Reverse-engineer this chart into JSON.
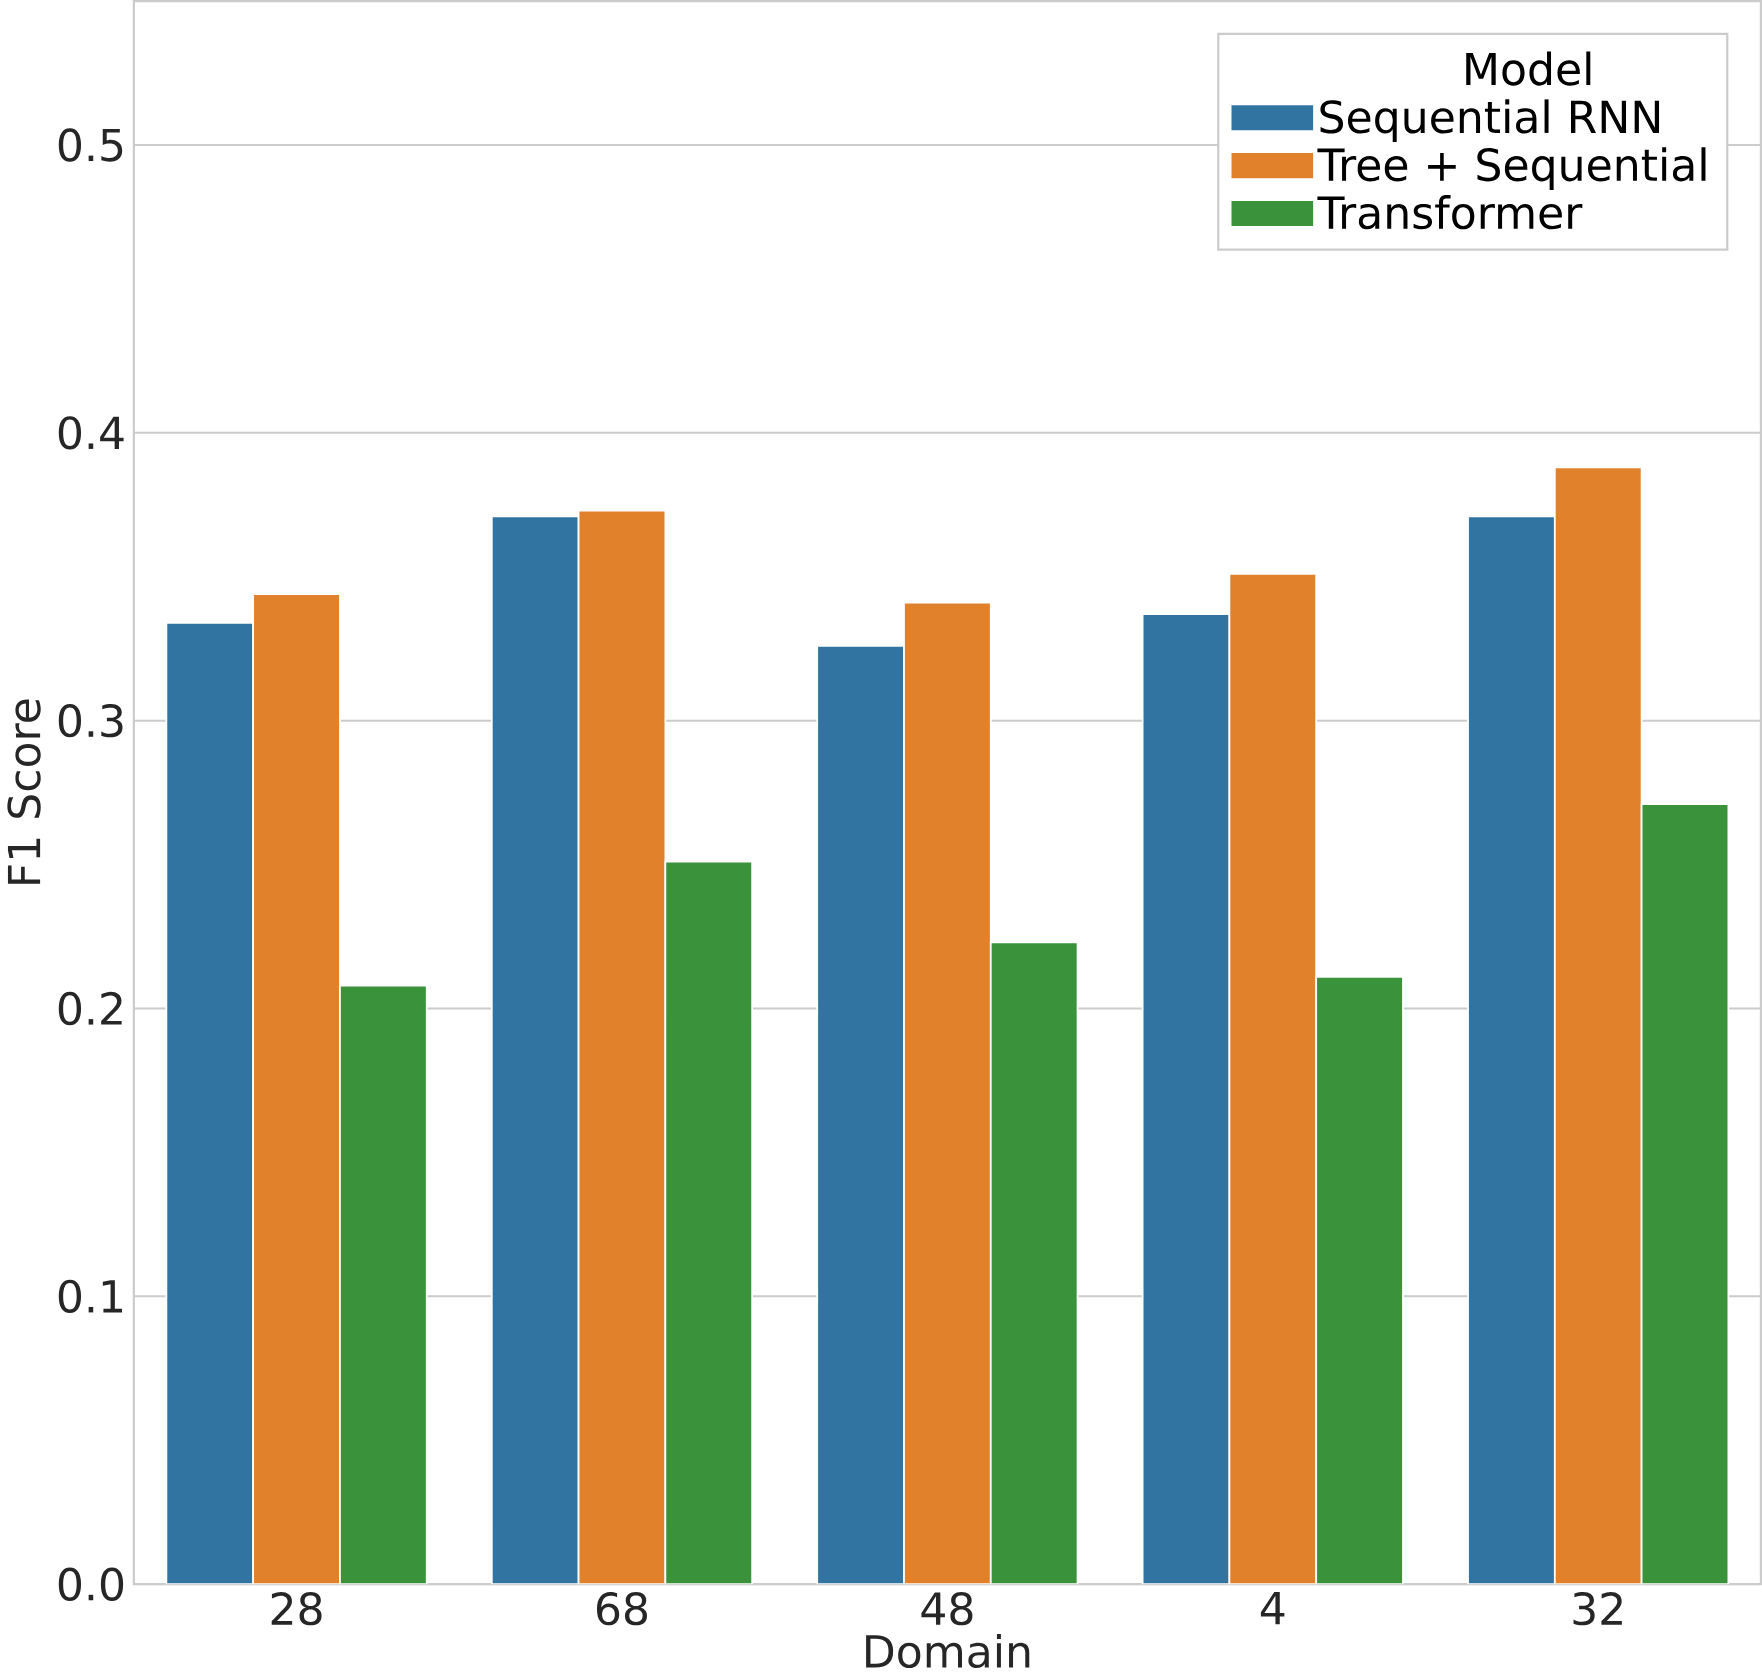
{
  "chart_data": {
    "type": "bar",
    "xlabel": "Domain",
    "ylabel": "F1 Score",
    "legend_title": "Model",
    "categories": [
      "28",
      "68",
      "48",
      "4",
      "32"
    ],
    "series": [
      {
        "name": "Sequential RNN",
        "color": "#3274a1",
        "values": [
          0.334,
          0.371,
          0.326,
          0.337,
          0.371
        ]
      },
      {
        "name": "Tree + Sequential",
        "color": "#e1812c",
        "values": [
          0.344,
          0.373,
          0.341,
          0.351,
          0.388
        ]
      },
      {
        "name": "Transformer",
        "color": "#3a923a",
        "values": [
          0.208,
          0.251,
          0.223,
          0.211,
          0.271
        ]
      }
    ],
    "ylim": [
      0,
      0.55
    ],
    "yticks": [
      {
        "value": 0,
        "label": "0.0"
      },
      0.1,
      0.2,
      0.3,
      0.4,
      0.5
    ],
    "grid": "y",
    "legend": "top right"
  }
}
